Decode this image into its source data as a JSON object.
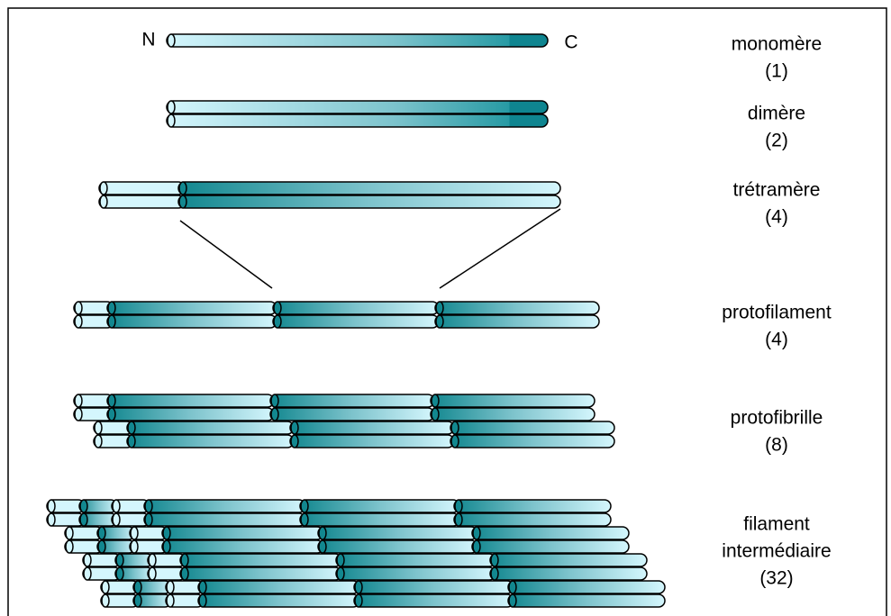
{
  "ends": {
    "n": "N",
    "c": "C"
  },
  "stages": [
    {
      "lines": [
        "monomère"
      ],
      "count": "(1)"
    },
    {
      "lines": [
        "dimère"
      ],
      "count": "(2)"
    },
    {
      "lines": [
        "trétramère"
      ],
      "count": "(4)"
    },
    {
      "lines": [
        "protofilament"
      ],
      "count": "(4)"
    },
    {
      "lines": [
        "protofibrille"
      ],
      "count": "(8)"
    },
    {
      "lines": [
        "filament",
        "intermédiaire"
      ],
      "count": "(32)"
    }
  ]
}
